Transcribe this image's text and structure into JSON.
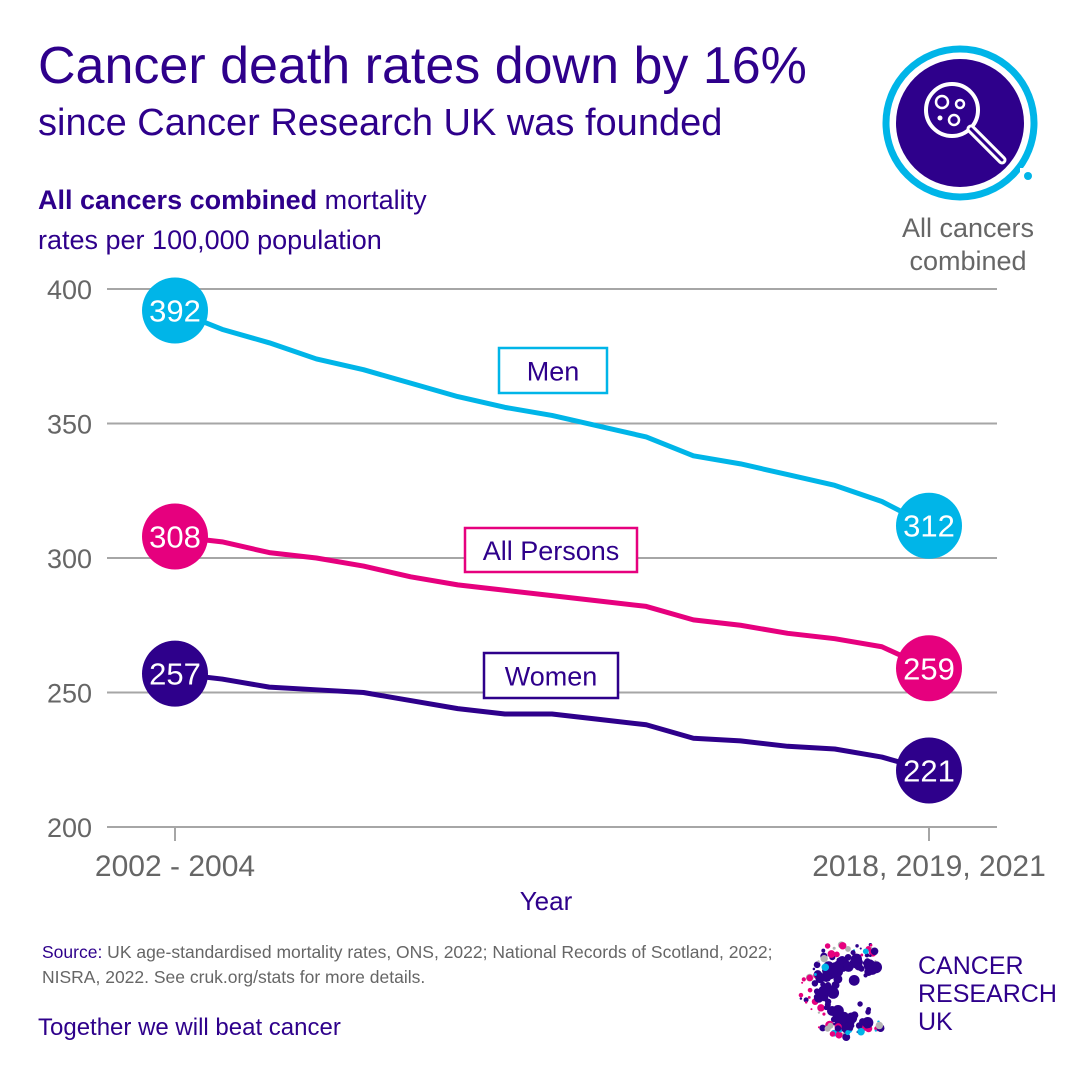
{
  "title": "Cancer death rates down by 16%",
  "subtitle": "since Cancer Research UK was founded",
  "chart_heading_bold": "All cancers combined",
  "chart_heading_rest_1": " mortality",
  "chart_heading_rest_2": "rates per 100,000 population",
  "icon": {
    "name": "magnifying-glass-cells-icon",
    "caption_1": "All cancers",
    "caption_2": "combined"
  },
  "source_label": "Source:",
  "source_text": " UK age-standardised mortality rates, ONS, 2022; National Records of Scotland, 2022; NISRA, 2022. See cruk.org/stats for more details.",
  "tagline": "Together we will beat cancer",
  "logo": {
    "line1": "CANCER",
    "line2": "RESEARCH",
    "line3": "UK"
  },
  "colors": {
    "purple": "#2e008b",
    "cyan": "#00b5e8",
    "pink": "#e6007e",
    "grid": "#a6a6a6",
    "axis_text": "#666666"
  },
  "chart_data": {
    "type": "line",
    "xlabel": "Year",
    "ylabel": "",
    "ylim": [
      200,
      400
    ],
    "yticks": [
      "200",
      "250",
      "300",
      "350",
      "400"
    ],
    "xtick_labels": [
      "2002 - 2004",
      "2018, 2019, 2021"
    ],
    "grid": true,
    "series": [
      {
        "name": "Men",
        "color": "#00b5e8",
        "start_label": "392",
        "end_label": "312",
        "values": [
          392,
          385,
          380,
          374,
          370,
          365,
          360,
          356,
          353,
          349,
          345,
          338,
          335,
          331,
          327,
          321,
          312
        ]
      },
      {
        "name": "All Persons",
        "color": "#e6007e",
        "start_label": "308",
        "end_label": "259",
        "values": [
          308,
          306,
          302,
          300,
          297,
          293,
          290,
          288,
          286,
          284,
          282,
          277,
          275,
          272,
          270,
          267,
          259
        ]
      },
      {
        "name": "Women",
        "color": "#2e008b",
        "start_label": "257",
        "end_label": "221",
        "values": [
          257,
          255,
          252,
          251,
          250,
          247,
          244,
          242,
          242,
          240,
          238,
          233,
          232,
          230,
          229,
          226,
          221
        ]
      }
    ]
  }
}
